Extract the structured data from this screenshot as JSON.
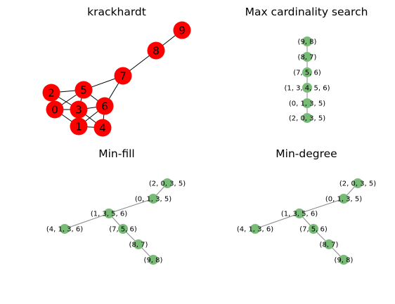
{
  "panels": [
    {
      "title": "krackhardt",
      "node_color": "#ff0000",
      "edge_color": "#000000",
      "nodes": [
        {
          "id": "0",
          "label": "0"
        },
        {
          "id": "1",
          "label": "1"
        },
        {
          "id": "2",
          "label": "2"
        },
        {
          "id": "3",
          "label": "3"
        },
        {
          "id": "4",
          "label": "4"
        },
        {
          "id": "5",
          "label": "5"
        },
        {
          "id": "6",
          "label": "6"
        },
        {
          "id": "7",
          "label": "7"
        },
        {
          "id": "8",
          "label": "8"
        },
        {
          "id": "9",
          "label": "9"
        }
      ],
      "edges": [
        [
          "0",
          "1"
        ],
        [
          "0",
          "2"
        ],
        [
          "0",
          "3"
        ],
        [
          "0",
          "5"
        ],
        [
          "1",
          "3"
        ],
        [
          "1",
          "4"
        ],
        [
          "1",
          "6"
        ],
        [
          "2",
          "3"
        ],
        [
          "2",
          "5"
        ],
        [
          "3",
          "4"
        ],
        [
          "3",
          "5"
        ],
        [
          "3",
          "6"
        ],
        [
          "4",
          "6"
        ],
        [
          "5",
          "6"
        ],
        [
          "5",
          "7"
        ],
        [
          "6",
          "7"
        ],
        [
          "7",
          "8"
        ],
        [
          "8",
          "9"
        ]
      ]
    },
    {
      "title": "Max cardinality search",
      "node_color": "#77bb77",
      "edge_color": "#888888",
      "nodes": [
        {
          "id": "a",
          "label": "(9, 8)"
        },
        {
          "id": "b",
          "label": "(8, 7)"
        },
        {
          "id": "c",
          "label": "(7, 5, 6)"
        },
        {
          "id": "d",
          "label": "(1, 3, 4, 5, 6)"
        },
        {
          "id": "e",
          "label": "(0, 1, 3, 5)"
        },
        {
          "id": "f",
          "label": "(2, 0, 3, 5)"
        }
      ],
      "edges": [
        [
          "a",
          "b"
        ],
        [
          "b",
          "c"
        ],
        [
          "c",
          "d"
        ],
        [
          "d",
          "e"
        ],
        [
          "e",
          "f"
        ]
      ]
    },
    {
      "title": "Min-fill",
      "node_color": "#77bb77",
      "edge_color": "#888888",
      "nodes": [
        {
          "id": "a",
          "label": "(2, 0, 3, 5)"
        },
        {
          "id": "b",
          "label": "(0, 1, 3, 5)"
        },
        {
          "id": "c",
          "label": "(1, 3, 5, 6)"
        },
        {
          "id": "d",
          "label": "(4, 1, 3, 6)"
        },
        {
          "id": "e",
          "label": "(7, 5, 6)"
        },
        {
          "id": "f",
          "label": "(8, 7)"
        },
        {
          "id": "g",
          "label": "(9, 8)"
        }
      ],
      "edges": [
        [
          "a",
          "b"
        ],
        [
          "b",
          "c"
        ],
        [
          "c",
          "d"
        ],
        [
          "c",
          "e"
        ],
        [
          "e",
          "f"
        ],
        [
          "f",
          "g"
        ]
      ]
    },
    {
      "title": "Min-degree",
      "node_color": "#77bb77",
      "edge_color": "#888888",
      "nodes": [
        {
          "id": "a",
          "label": "(2, 0, 3, 5)"
        },
        {
          "id": "b",
          "label": "(0, 1, 3, 5)"
        },
        {
          "id": "c",
          "label": "(1, 3, 5, 6)"
        },
        {
          "id": "d",
          "label": "(4, 1, 3, 6)"
        },
        {
          "id": "e",
          "label": "(7, 5, 6)"
        },
        {
          "id": "f",
          "label": "(8, 7)"
        },
        {
          "id": "g",
          "label": "(9, 8)"
        }
      ],
      "edges": [
        [
          "a",
          "b"
        ],
        [
          "b",
          "c"
        ],
        [
          "c",
          "d"
        ],
        [
          "c",
          "e"
        ],
        [
          "e",
          "f"
        ],
        [
          "f",
          "g"
        ]
      ]
    }
  ]
}
